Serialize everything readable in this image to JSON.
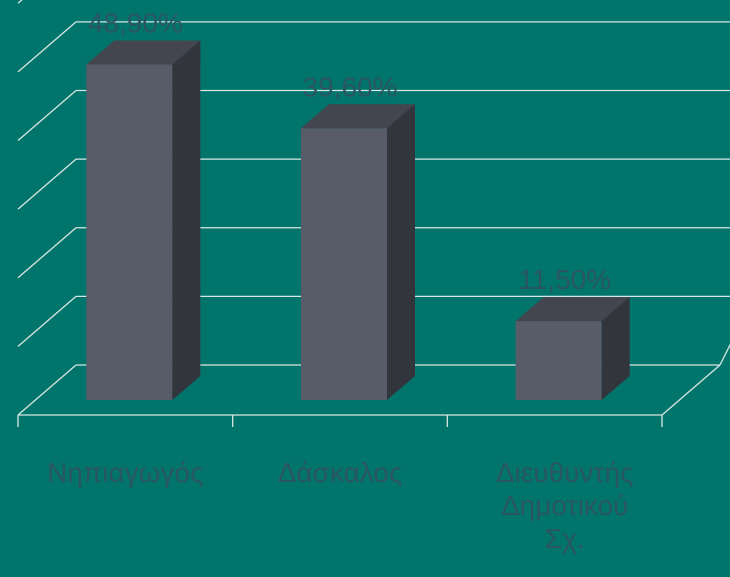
{
  "colors": {
    "background": "#01756b",
    "grid": "#d8e6e4",
    "bar_front": "#585b68",
    "bar_top": "#43454f",
    "bar_side": "#33353d",
    "text": "#2a5563"
  },
  "chart_data": {
    "type": "bar",
    "title": "",
    "xlabel": "",
    "ylabel": "",
    "categories": [
      "Νηπιαγωγός",
      "Δάσκαλος",
      "Διευθυντής Δημοτικού Σχ."
    ],
    "category_lines": [
      [
        "Νηπιαγωγός"
      ],
      [
        "Δάσκαλος"
      ],
      [
        "Διευθυντής",
        "Δημοτικού",
        "Σχ."
      ]
    ],
    "values": [
      48.9,
      39.6,
      11.5
    ],
    "value_labels": [
      "48,90%",
      "39,60%",
      "11,50%"
    ],
    "ylim": [
      0,
      60
    ],
    "grid": true,
    "legend": "none"
  }
}
